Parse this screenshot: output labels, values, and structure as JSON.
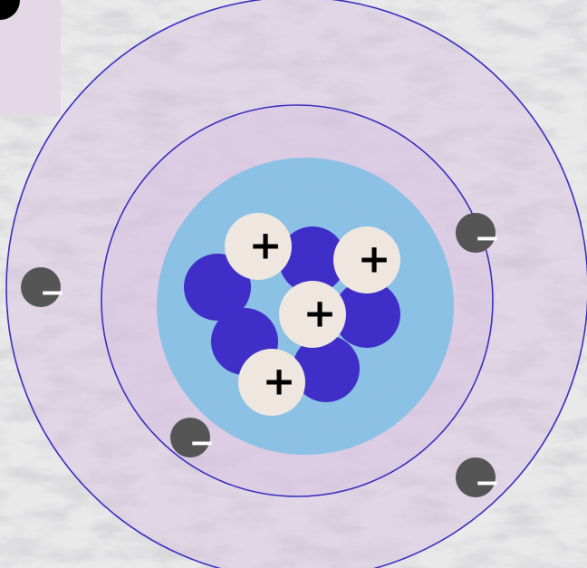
{
  "nucleus": {
    "protons": [
      {
        "label": "+"
      },
      {
        "label": "+"
      },
      {
        "label": "+"
      },
      {
        "label": "+"
      }
    ]
  },
  "electrons": [
    {
      "label": "−"
    },
    {
      "label": "−"
    },
    {
      "label": "−"
    },
    {
      "label": "−"
    }
  ]
}
